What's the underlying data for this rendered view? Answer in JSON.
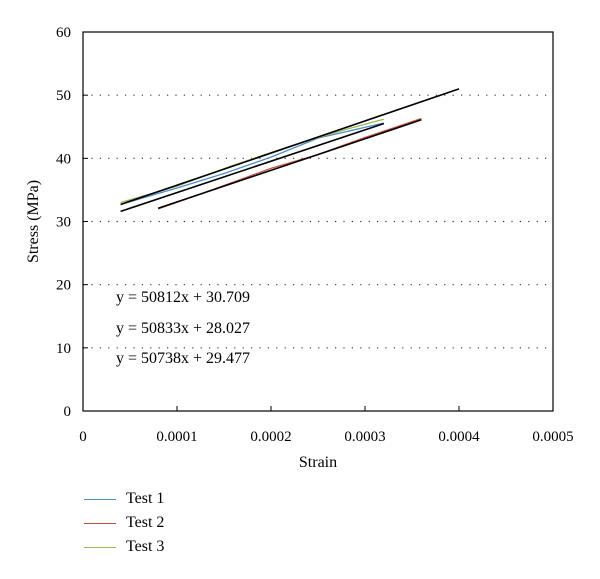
{
  "chart_data": {
    "type": "line",
    "xlabel": "Strain",
    "ylabel": "Stress (MPa)",
    "xlim": [
      0,
      0.0005
    ],
    "ylim": [
      0,
      60
    ],
    "x_ticks": [
      "0",
      "0.0001",
      "0.0002",
      "0.0003",
      "0.0004",
      "0.0005"
    ],
    "y_ticks": [
      "0",
      "10",
      "20",
      "30",
      "40",
      "50",
      "60"
    ],
    "grid": "horizontal dotted",
    "legend_position": "bottom-left",
    "series": [
      {
        "name": "Test 1",
        "color": "#4a8fd0",
        "x": [
          4e-05,
          0.0001,
          0.00015,
          0.0002,
          0.00025,
          0.00032
        ],
        "y": [
          32.7,
          35.3,
          37.6,
          40.2,
          43.2,
          45.6
        ]
      },
      {
        "name": "Test 2",
        "color": "#d04a3c",
        "x": [
          8e-05,
          0.00013,
          0.0002,
          0.00025,
          0.0003,
          0.00036
        ],
        "y": [
          32.0,
          34.6,
          38.4,
          40.6,
          43.3,
          46.3
        ]
      },
      {
        "name": "Test 3",
        "color": "#9cb84a",
        "x": [
          4e-05,
          0.0001,
          0.00016,
          0.00022,
          0.00028,
          0.00032
        ],
        "y": [
          33.0,
          35.6,
          38.9,
          41.9,
          44.6,
          46.2
        ]
      }
    ],
    "trendlines": [
      {
        "color": "#000000",
        "x": [
          4e-05,
          0.00032
        ],
        "y": [
          31.6,
          45.5
        ]
      },
      {
        "color": "#000000",
        "x": [
          8e-05,
          0.00036
        ],
        "y": [
          32.1,
          46.1
        ]
      },
      {
        "color": "#000000",
        "x": [
          4e-05,
          0.0004
        ],
        "y": [
          32.7,
          51.0
        ]
      }
    ],
    "equations": [
      "y = 50812x + 30.709",
      "y = 50833x + 28.027",
      "y = 50738x + 29.477"
    ]
  }
}
